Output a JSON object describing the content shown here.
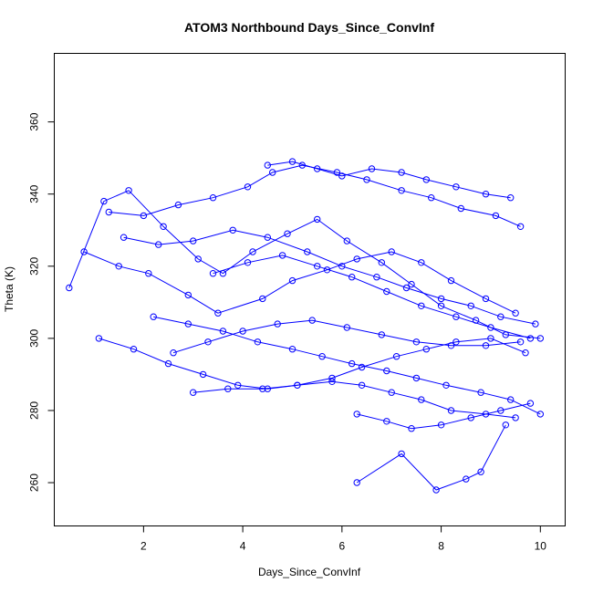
{
  "chart_data": {
    "type": "line",
    "title": "ATOM3 Northbound Days_Since_ConvInf",
    "xlabel": "Days_Since_ConvInf",
    "ylabel": "Theta (K)",
    "xlim": [
      0.2,
      10.5
    ],
    "ylim": [
      248,
      379
    ],
    "x_ticks": [
      2,
      4,
      6,
      8,
      10
    ],
    "y_ticks": [
      260,
      280,
      300,
      320,
      340,
      360
    ],
    "grid": false,
    "legend": "none",
    "color": "#0000ff",
    "marker": "open-circle",
    "note": "Dense trajectory data; values below are a representative sample read from the plot",
    "series": [
      {
        "x": [
          0.5,
          1.2,
          1.7,
          2.4,
          3.1,
          3.6,
          4.2,
          4.9,
          5.5,
          6.1,
          6.8,
          7.4,
          8.0,
          8.7,
          9.3,
          10.0
        ],
        "y": [
          314,
          338,
          341,
          331,
          322,
          318,
          324,
          329,
          333,
          327,
          321,
          315,
          309,
          305,
          301,
          300
        ]
      },
      {
        "x": [
          0.8,
          1.5,
          2.1,
          2.9,
          3.5,
          4.4,
          5.0,
          5.7,
          6.3,
          7.0,
          7.6,
          8.2,
          8.9,
          9.5
        ],
        "y": [
          324,
          320,
          318,
          312,
          307,
          311,
          316,
          319,
          322,
          324,
          321,
          316,
          311,
          307
        ]
      },
      {
        "x": [
          1.1,
          1.8,
          2.5,
          3.2,
          3.9,
          4.5,
          5.1,
          5.8,
          6.4,
          7.1,
          7.7,
          8.3,
          9.0,
          9.7
        ],
        "y": [
          300,
          297,
          293,
          290,
          287,
          286,
          287,
          289,
          292,
          295,
          297,
          299,
          300,
          296
        ]
      },
      {
        "x": [
          1.3,
          2.0,
          2.7,
          3.4,
          4.1,
          4.6,
          5.2,
          5.9,
          6.5,
          7.2,
          7.8,
          8.4,
          9.1,
          9.6
        ],
        "y": [
          335,
          334,
          337,
          339,
          342,
          346,
          348,
          346,
          344,
          341,
          339,
          336,
          334,
          331
        ]
      },
      {
        "x": [
          2.2,
          2.9,
          3.6,
          4.3,
          5.0,
          5.6,
          6.2,
          6.9,
          7.5,
          8.1,
          8.8,
          9.4,
          10.0
        ],
        "y": [
          306,
          304,
          302,
          299,
          297,
          295,
          293,
          291,
          289,
          287,
          285,
          283,
          279
        ]
      },
      {
        "x": [
          3.0,
          3.7,
          4.4,
          5.1,
          5.8,
          6.4,
          7.0,
          7.6,
          8.2,
          8.9,
          9.5
        ],
        "y": [
          285,
          286,
          286,
          287,
          288,
          287,
          285,
          283,
          280,
          279,
          278
        ]
      },
      {
        "x": [
          6.3,
          6.9,
          7.4,
          8.0,
          8.6,
          9.2,
          9.8
        ],
        "y": [
          279,
          277,
          275,
          276,
          278,
          280,
          282
        ]
      },
      {
        "x": [
          6.3,
          7.2,
          7.9,
          8.5,
          8.8,
          9.3
        ],
        "y": [
          260,
          268,
          258,
          261,
          263,
          276
        ]
      },
      {
        "x": [
          4.5,
          5.0,
          5.5,
          6.0,
          6.6,
          7.2,
          7.7,
          8.3,
          8.9,
          9.4
        ],
        "y": [
          348,
          349,
          347,
          345,
          347,
          346,
          344,
          342,
          340,
          339
        ]
      },
      {
        "x": [
          1.6,
          2.3,
          3.0,
          3.8,
          4.5,
          5.3,
          6.0,
          6.7,
          7.3,
          8.0,
          8.6,
          9.2,
          9.9
        ],
        "y": [
          328,
          326,
          327,
          330,
          328,
          324,
          320,
          317,
          314,
          311,
          309,
          306,
          304
        ]
      },
      {
        "x": [
          2.6,
          3.3,
          4.0,
          4.7,
          5.4,
          6.1,
          6.8,
          7.5,
          8.2,
          8.9,
          9.6
        ],
        "y": [
          296,
          299,
          302,
          304,
          305,
          303,
          301,
          299,
          298,
          298,
          299
        ]
      },
      {
        "x": [
          3.4,
          4.1,
          4.8,
          5.5,
          6.2,
          6.9,
          7.6,
          8.3,
          9.0,
          9.8
        ],
        "y": [
          318,
          321,
          323,
          320,
          317,
          313,
          309,
          306,
          303,
          300
        ]
      }
    ]
  }
}
